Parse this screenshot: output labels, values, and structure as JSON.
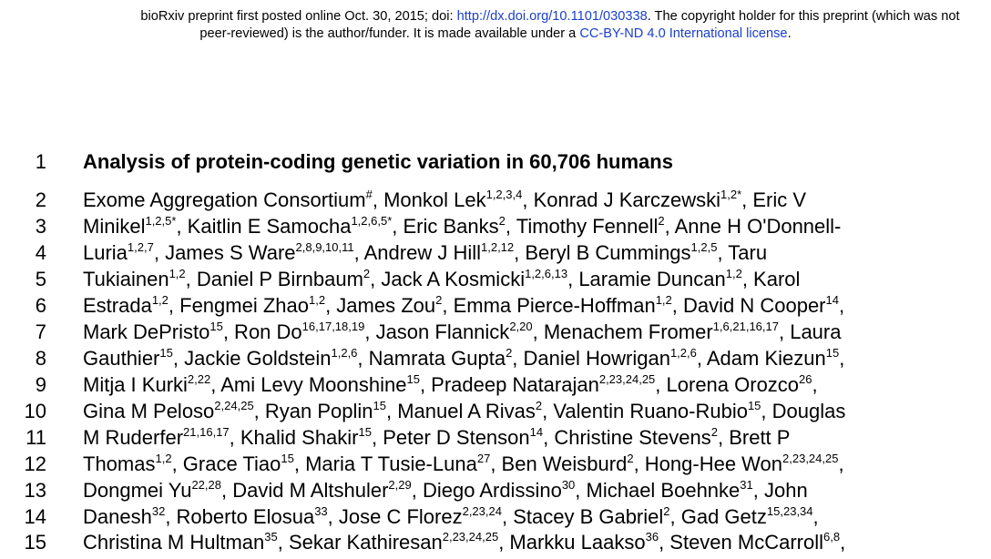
{
  "banner": {
    "line1_prefix": "bioRxiv preprint first posted online Oct. 30, 2015; doi: ",
    "doi_link": "http://dx.doi.org/10.1101/030338",
    "line1_suffix": ". The copyright holder for this preprint (which was not",
    "line2_prefix": "peer-reviewed) is the author/funder. It is made available under a ",
    "license_link": "CC-BY-ND 4.0 International license",
    "line2_suffix": "."
  },
  "lines": [
    {
      "num": "1",
      "segments": [
        {
          "t": "Analysis of protein-coding genetic variation in 60,706 humans"
        }
      ]
    },
    {
      "num": "2",
      "segments": [
        {
          "t": "Exome Aggregation Consortium"
        },
        {
          "s": "#"
        },
        {
          "t": ", Monkol Lek"
        },
        {
          "s": "1,2,3,4"
        },
        {
          "t": ", Konrad J Karczewski"
        },
        {
          "s": "1,2*"
        },
        {
          "t": ", Eric V"
        }
      ]
    },
    {
      "num": "3",
      "segments": [
        {
          "t": "Minikel"
        },
        {
          "s": "1,2,5*"
        },
        {
          "t": ", Kaitlin E Samocha"
        },
        {
          "s": "1,2,6,5*"
        },
        {
          "t": ", Eric Banks"
        },
        {
          "s": "2"
        },
        {
          "t": ", Timothy Fennell"
        },
        {
          "s": "2"
        },
        {
          "t": ", Anne H O'Donnell-"
        }
      ]
    },
    {
      "num": "4",
      "segments": [
        {
          "t": "Luria"
        },
        {
          "s": "1,2,7"
        },
        {
          "t": ", James S Ware"
        },
        {
          "s": "2,8,9,10,11"
        },
        {
          "t": ", Andrew J Hill"
        },
        {
          "s": "1,2,12"
        },
        {
          "t": ", Beryl B Cummings"
        },
        {
          "s": "1,2,5"
        },
        {
          "t": ", Taru"
        }
      ]
    },
    {
      "num": "5",
      "segments": [
        {
          "t": "Tukiainen"
        },
        {
          "s": "1,2"
        },
        {
          "t": ", Daniel P Birnbaum"
        },
        {
          "s": "2"
        },
        {
          "t": ", Jack A Kosmicki"
        },
        {
          "s": "1,2,6,13"
        },
        {
          "t": ", Laramie Duncan"
        },
        {
          "s": "1,2"
        },
        {
          "t": ", Karol"
        }
      ]
    },
    {
      "num": "6",
      "segments": [
        {
          "t": "Estrada"
        },
        {
          "s": "1,2"
        },
        {
          "t": ", Fengmei Zhao"
        },
        {
          "s": "1,2"
        },
        {
          "t": ", James Zou"
        },
        {
          "s": "2"
        },
        {
          "t": ", Emma Pierce-Hoffman"
        },
        {
          "s": "1,2"
        },
        {
          "t": ", David N Cooper"
        },
        {
          "s": "14"
        },
        {
          "t": ","
        }
      ]
    },
    {
      "num": "7",
      "segments": [
        {
          "t": "Mark DePristo"
        },
        {
          "s": "15"
        },
        {
          "t": ", Ron Do"
        },
        {
          "s": "16,17,18,19"
        },
        {
          "t": ", Jason Flannick"
        },
        {
          "s": "2,20"
        },
        {
          "t": ", Menachem Fromer"
        },
        {
          "s": "1,6,21,16,17"
        },
        {
          "t": ", Laura"
        }
      ]
    },
    {
      "num": "8",
      "segments": [
        {
          "t": "Gauthier"
        },
        {
          "s": "15"
        },
        {
          "t": ", Jackie Goldstein"
        },
        {
          "s": "1,2,6"
        },
        {
          "t": ", Namrata Gupta"
        },
        {
          "s": "2"
        },
        {
          "t": ", Daniel Howrigan"
        },
        {
          "s": "1,2,6"
        },
        {
          "t": ", Adam Kiezun"
        },
        {
          "s": "15"
        },
        {
          "t": ","
        }
      ]
    },
    {
      "num": "9",
      "segments": [
        {
          "t": "Mitja I Kurki"
        },
        {
          "s": "2,22"
        },
        {
          "t": ", Ami Levy Moonshine"
        },
        {
          "s": "15"
        },
        {
          "t": ", Pradeep Natarajan"
        },
        {
          "s": "2,23,24,25"
        },
        {
          "t": ", Lorena Orozco"
        },
        {
          "s": "26"
        },
        {
          "t": ","
        }
      ]
    },
    {
      "num": "10",
      "segments": [
        {
          "t": "Gina M Peloso"
        },
        {
          "s": "2,24,25"
        },
        {
          "t": ", Ryan Poplin"
        },
        {
          "s": "15"
        },
        {
          "t": ", Manuel A Rivas"
        },
        {
          "s": "2"
        },
        {
          "t": ", Valentin Ruano-Rubio"
        },
        {
          "s": "15"
        },
        {
          "t": ", Douglas"
        }
      ]
    },
    {
      "num": "11",
      "segments": [
        {
          "t": "M Ruderfer"
        },
        {
          "s": "21,16,17"
        },
        {
          "t": ", Khalid Shakir"
        },
        {
          "s": "15"
        },
        {
          "t": ", Peter D Stenson"
        },
        {
          "s": "14"
        },
        {
          "t": ", Christine Stevens"
        },
        {
          "s": "2"
        },
        {
          "t": ", Brett P"
        }
      ]
    },
    {
      "num": "12",
      "segments": [
        {
          "t": "Thomas"
        },
        {
          "s": "1,2"
        },
        {
          "t": ", Grace Tiao"
        },
        {
          "s": "15"
        },
        {
          "t": ", Maria T Tusie-Luna"
        },
        {
          "s": "27"
        },
        {
          "t": ", Ben Weisburd"
        },
        {
          "s": "2"
        },
        {
          "t": ", Hong-Hee Won"
        },
        {
          "s": "2,23,24,25"
        },
        {
          "t": ","
        }
      ]
    },
    {
      "num": "13",
      "segments": [
        {
          "t": "Dongmei Yu"
        },
        {
          "s": "22,28"
        },
        {
          "t": ", David M Altshuler"
        },
        {
          "s": "2,29"
        },
        {
          "t": ", Diego Ardissino"
        },
        {
          "s": "30"
        },
        {
          "t": ", Michael Boehnke"
        },
        {
          "s": "31"
        },
        {
          "t": ", John"
        }
      ]
    },
    {
      "num": "14",
      "segments": [
        {
          "t": "Danesh"
        },
        {
          "s": "32"
        },
        {
          "t": ", Roberto Elosua"
        },
        {
          "s": "33"
        },
        {
          "t": ", Jose C Florez"
        },
        {
          "s": "2,23,24"
        },
        {
          "t": ", Stacey B Gabriel"
        },
        {
          "s": "2"
        },
        {
          "t": ", Gad Getz"
        },
        {
          "s": "15,23,34"
        },
        {
          "t": ","
        }
      ]
    },
    {
      "num": "15",
      "segments": [
        {
          "t": "Christina M Hultman"
        },
        {
          "s": "35"
        },
        {
          "t": ", Sekar Kathiresan"
        },
        {
          "s": "2,23,24,25"
        },
        {
          "t": ", Markku Laakso"
        },
        {
          "s": "36"
        },
        {
          "t": ", Steven McCarroll"
        },
        {
          "s": "6,8"
        },
        {
          "t": ","
        }
      ]
    }
  ]
}
